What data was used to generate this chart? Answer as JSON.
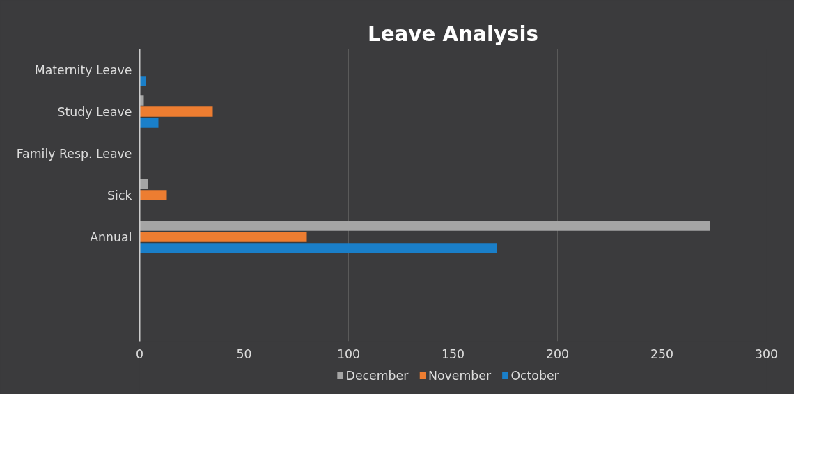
{
  "chart_data": {
    "type": "bar",
    "orientation": "horizontal",
    "title": "Leave Analysis",
    "categories": [
      "Maternity Leave",
      "Study Leave",
      "Family Resp. Leave",
      "Sick",
      "Annual",
      null,
      null
    ],
    "series": [
      {
        "name": "December",
        "color": "#a5a5a5",
        "values": [
          null,
          2,
          null,
          4,
          273,
          null,
          null
        ]
      },
      {
        "name": "November",
        "color": "#ed7d31",
        "values": [
          null,
          35,
          null,
          13,
          80,
          null,
          null
        ]
      },
      {
        "name": "October",
        "color": "#1a7fc9",
        "values": [
          3,
          9,
          null,
          null,
          171,
          null,
          null
        ]
      }
    ],
    "xlim": [
      0,
      300
    ],
    "xticks": [
      0,
      50,
      100,
      150,
      200,
      250,
      300
    ],
    "grid": "x",
    "legend": "bottom"
  }
}
